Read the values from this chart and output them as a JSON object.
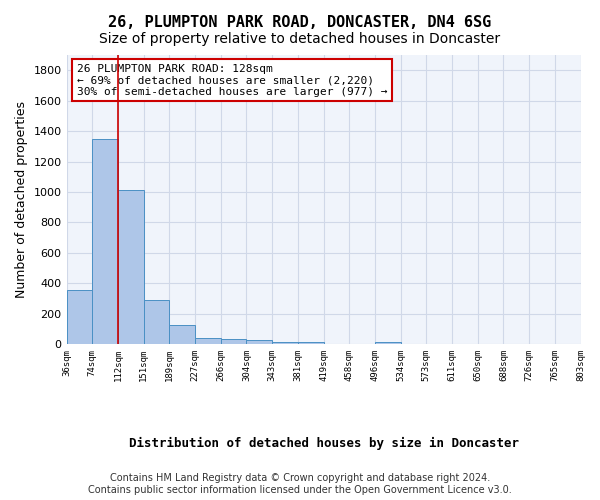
{
  "title": "26, PLUMPTON PARK ROAD, DONCASTER, DN4 6SG",
  "subtitle": "Size of property relative to detached houses in Doncaster",
  "xlabel": "Distribution of detached houses by size in Doncaster",
  "ylabel": "Number of detached properties",
  "bar_values": [
    355,
    1350,
    1010,
    290,
    125,
    42,
    35,
    25,
    18,
    15,
    0,
    0,
    18,
    0,
    0,
    0,
    0,
    0,
    0,
    0
  ],
  "bin_labels": [
    "36sqm",
    "74sqm",
    "112sqm",
    "151sqm",
    "189sqm",
    "227sqm",
    "266sqm",
    "304sqm",
    "343sqm",
    "381sqm",
    "419sqm",
    "458sqm",
    "496sqm",
    "534sqm",
    "573sqm",
    "611sqm",
    "650sqm",
    "688sqm",
    "726sqm",
    "765sqm",
    "803sqm"
  ],
  "bar_color": "#aec6e8",
  "bar_edge_color": "#4a90c4",
  "grid_color": "#d0d8e8",
  "annotation_box_color": "#cc0000",
  "vline_color": "#cc0000",
  "vline_x": 2,
  "annotation_text": "26 PLUMPTON PARK ROAD: 128sqm\n← 69% of detached houses are smaller (2,220)\n30% of semi-detached houses are larger (977) →",
  "ylim": [
    0,
    1900
  ],
  "yticks": [
    0,
    200,
    400,
    600,
    800,
    1000,
    1200,
    1400,
    1600,
    1800
  ],
  "footer_text": "Contains HM Land Registry data © Crown copyright and database right 2024.\nContains public sector information licensed under the Open Government Licence v3.0.",
  "bg_color": "#f0f4fb",
  "fig_bg_color": "#ffffff",
  "title_fontsize": 11,
  "subtitle_fontsize": 10,
  "annotation_fontsize": 8,
  "ylabel_fontsize": 9,
  "xlabel_fontsize": 9,
  "footer_fontsize": 7
}
